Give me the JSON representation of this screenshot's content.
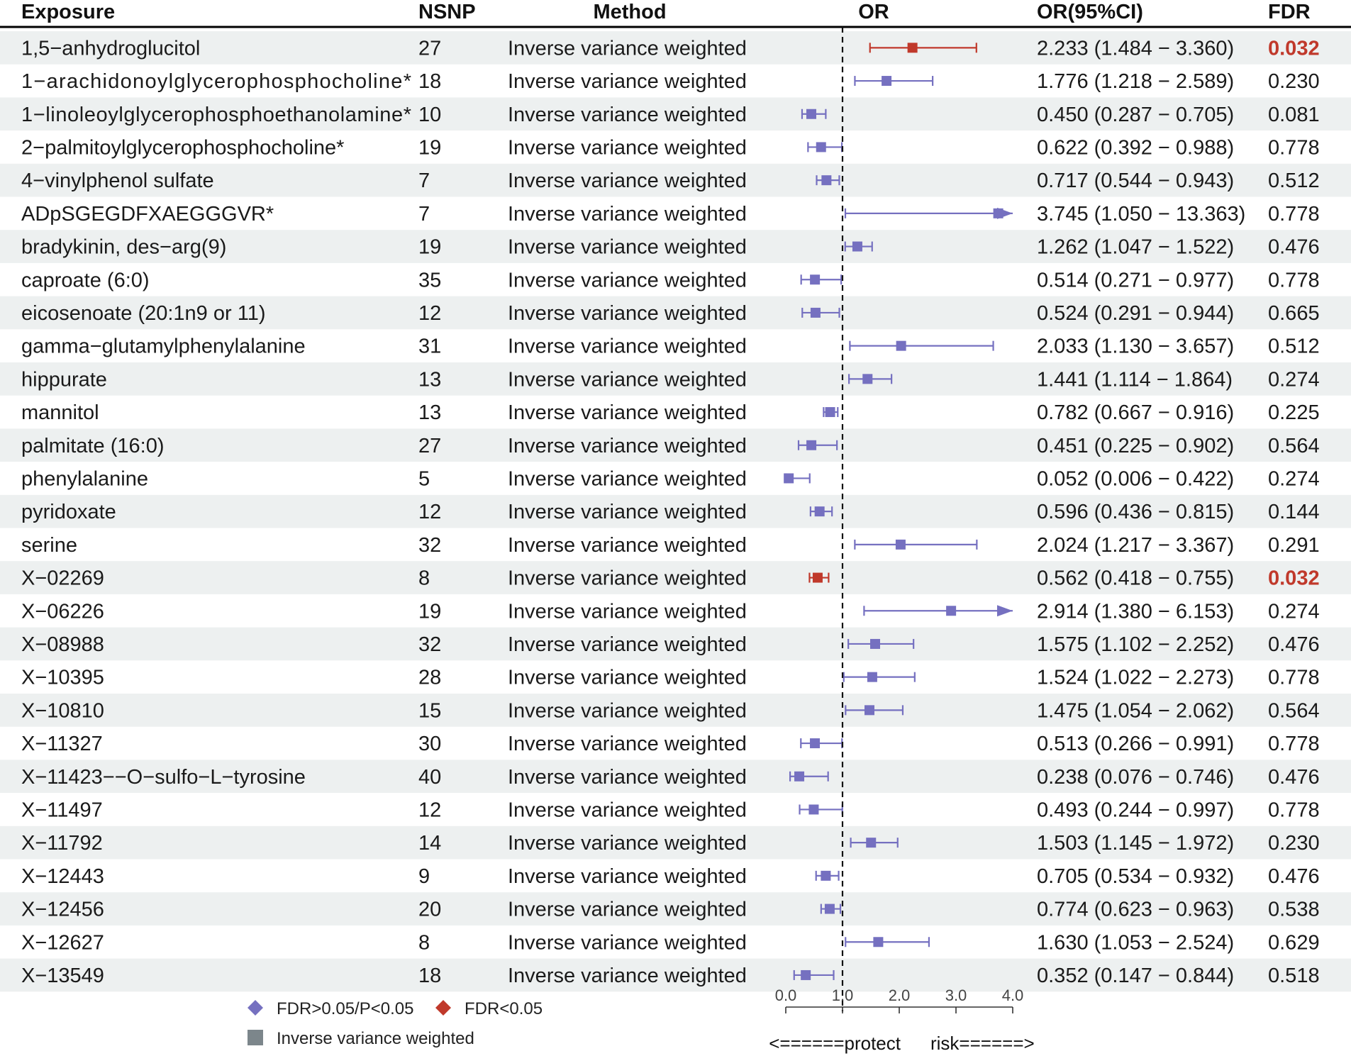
{
  "chart_data": {
    "type": "forest",
    "headers": {
      "exposure": "Exposure",
      "nsnp": "NSNP",
      "method": "Method",
      "or": "OR",
      "ci": "OR(95%CI)",
      "fdr": "FDR"
    },
    "x_axis": {
      "ticks": [
        0.0,
        1.0,
        2.0,
        3.0,
        4.0
      ],
      "tick_labels": [
        "0.0",
        "1.0",
        "2.0",
        "3.0",
        "4.0"
      ],
      "xlim": [
        0.0,
        4.0
      ],
      "reference_line": 1.0,
      "protect_label": "<======protect",
      "risk_label": "risk======>"
    },
    "legend": {
      "items": [
        {
          "label": "FDR>0.05/P<0.05",
          "shape": "diamond",
          "color": "#7570c0"
        },
        {
          "label": "FDR<0.05",
          "shape": "diamond",
          "color": "#c0392b"
        },
        {
          "label": "Inverse variance weighted",
          "shape": "square",
          "color": "#7c868b"
        }
      ]
    },
    "colors": {
      "nonsig": "#7570c0",
      "sig": "#c0392b",
      "stripe": "#edf0f0",
      "header_rule": "#000000"
    },
    "rows": [
      {
        "exposure": "1,5−anhydroglucitol",
        "nsnp": "27",
        "method": "Inverse variance weighted",
        "or": 2.233,
        "lo": 1.484,
        "hi": 3.36,
        "ci": "2.233 (1.484 − 3.360)",
        "fdr": "0.032",
        "sig": true
      },
      {
        "exposure": "1−arachidonoylglycerophosphocholine*",
        "nsnp": "18",
        "method": "Inverse variance weighted",
        "or": 1.776,
        "lo": 1.218,
        "hi": 2.589,
        "ci": "1.776 (1.218 − 2.589)",
        "fdr": "0.230",
        "sig": false
      },
      {
        "exposure": "1−linoleoylglycerophosphoethanolamine*",
        "nsnp": "10",
        "method": "Inverse variance weighted",
        "or": 0.45,
        "lo": 0.287,
        "hi": 0.705,
        "ci": "0.450 (0.287 − 0.705)",
        "fdr": "0.081",
        "sig": false
      },
      {
        "exposure": "2−palmitoylglycerophosphocholine*",
        "nsnp": "19",
        "method": "Inverse variance weighted",
        "or": 0.622,
        "lo": 0.392,
        "hi": 0.988,
        "ci": "0.622 (0.392 − 0.988)",
        "fdr": "0.778",
        "sig": false
      },
      {
        "exposure": "4−vinylphenol sulfate",
        "nsnp": "7",
        "method": "Inverse variance weighted",
        "or": 0.717,
        "lo": 0.544,
        "hi": 0.943,
        "ci": "0.717 (0.544 − 0.943)",
        "fdr": "0.512",
        "sig": false
      },
      {
        "exposure": "ADpSGEGDFXAEGGGVR*",
        "nsnp": "7",
        "method": "Inverse variance weighted",
        "or": 3.745,
        "lo": 1.05,
        "hi": 13.363,
        "ci": "3.745 (1.050 − 13.363)",
        "fdr": "0.778",
        "sig": false
      },
      {
        "exposure": "bradykinin, des−arg(9)",
        "nsnp": "19",
        "method": "Inverse variance weighted",
        "or": 1.262,
        "lo": 1.047,
        "hi": 1.522,
        "ci": "1.262 (1.047 − 1.522)",
        "fdr": "0.476",
        "sig": false
      },
      {
        "exposure": "caproate (6:0)",
        "nsnp": "35",
        "method": "Inverse variance weighted",
        "or": 0.514,
        "lo": 0.271,
        "hi": 0.977,
        "ci": "0.514 (0.271 − 0.977)",
        "fdr": "0.778",
        "sig": false
      },
      {
        "exposure": "eicosenoate (20:1n9 or 11)",
        "nsnp": "12",
        "method": "Inverse variance weighted",
        "or": 0.524,
        "lo": 0.291,
        "hi": 0.944,
        "ci": "0.524 (0.291 − 0.944)",
        "fdr": "0.665",
        "sig": false
      },
      {
        "exposure": "gamma−glutamylphenylalanine",
        "nsnp": "31",
        "method": "Inverse variance weighted",
        "or": 2.033,
        "lo": 1.13,
        "hi": 3.657,
        "ci": "2.033 (1.130 − 3.657)",
        "fdr": "0.512",
        "sig": false
      },
      {
        "exposure": "hippurate",
        "nsnp": "13",
        "method": "Inverse variance weighted",
        "or": 1.441,
        "lo": 1.114,
        "hi": 1.864,
        "ci": "1.441 (1.114 − 1.864)",
        "fdr": "0.274",
        "sig": false
      },
      {
        "exposure": "mannitol",
        "nsnp": "13",
        "method": "Inverse variance weighted",
        "or": 0.782,
        "lo": 0.667,
        "hi": 0.916,
        "ci": "0.782 (0.667 − 0.916)",
        "fdr": "0.225",
        "sig": false
      },
      {
        "exposure": "palmitate (16:0)",
        "nsnp": "27",
        "method": "Inverse variance weighted",
        "or": 0.451,
        "lo": 0.225,
        "hi": 0.902,
        "ci": "0.451 (0.225 − 0.902)",
        "fdr": "0.564",
        "sig": false
      },
      {
        "exposure": "phenylalanine",
        "nsnp": "5",
        "method": "Inverse variance weighted",
        "or": 0.052,
        "lo": 0.006,
        "hi": 0.422,
        "ci": "0.052 (0.006 − 0.422)",
        "fdr": "0.274",
        "sig": false
      },
      {
        "exposure": "pyridoxate",
        "nsnp": "12",
        "method": "Inverse variance weighted",
        "or": 0.596,
        "lo": 0.436,
        "hi": 0.815,
        "ci": "0.596 (0.436 − 0.815)",
        "fdr": "0.144",
        "sig": false
      },
      {
        "exposure": "serine",
        "nsnp": "32",
        "method": "Inverse variance weighted",
        "or": 2.024,
        "lo": 1.217,
        "hi": 3.367,
        "ci": "2.024 (1.217 − 3.367)",
        "fdr": "0.291",
        "sig": false
      },
      {
        "exposure": "X−02269",
        "nsnp": "8",
        "method": "Inverse variance weighted",
        "or": 0.562,
        "lo": 0.418,
        "hi": 0.755,
        "ci": "0.562 (0.418 − 0.755)",
        "fdr": "0.032",
        "sig": true
      },
      {
        "exposure": "X−06226",
        "nsnp": "19",
        "method": "Inverse variance weighted",
        "or": 2.914,
        "lo": 1.38,
        "hi": 6.153,
        "ci": "2.914 (1.380 − 6.153)",
        "fdr": "0.274",
        "sig": false
      },
      {
        "exposure": "X−08988",
        "nsnp": "32",
        "method": "Inverse variance weighted",
        "or": 1.575,
        "lo": 1.102,
        "hi": 2.252,
        "ci": "1.575 (1.102 − 2.252)",
        "fdr": "0.476",
        "sig": false
      },
      {
        "exposure": "X−10395",
        "nsnp": "28",
        "method": "Inverse variance weighted",
        "or": 1.524,
        "lo": 1.022,
        "hi": 2.273,
        "ci": "1.524 (1.022 − 2.273)",
        "fdr": "0.778",
        "sig": false
      },
      {
        "exposure": "X−10810",
        "nsnp": "15",
        "method": "Inverse variance weighted",
        "or": 1.475,
        "lo": 1.054,
        "hi": 2.062,
        "ci": "1.475 (1.054 − 2.062)",
        "fdr": "0.564",
        "sig": false
      },
      {
        "exposure": "X−11327",
        "nsnp": "30",
        "method": "Inverse variance weighted",
        "or": 0.513,
        "lo": 0.266,
        "hi": 0.991,
        "ci": "0.513 (0.266 − 0.991)",
        "fdr": "0.778",
        "sig": false
      },
      {
        "exposure": "X−11423−−O−sulfo−L−tyrosine",
        "nsnp": "40",
        "method": "Inverse variance weighted",
        "or": 0.238,
        "lo": 0.076,
        "hi": 0.746,
        "ci": "0.238 (0.076 − 0.746)",
        "fdr": "0.476",
        "sig": false
      },
      {
        "exposure": "X−11497",
        "nsnp": "12",
        "method": "Inverse variance weighted",
        "or": 0.493,
        "lo": 0.244,
        "hi": 0.997,
        "ci": "0.493 (0.244 − 0.997)",
        "fdr": "0.778",
        "sig": false
      },
      {
        "exposure": "X−11792",
        "nsnp": "14",
        "method": "Inverse variance weighted",
        "or": 1.503,
        "lo": 1.145,
        "hi": 1.972,
        "ci": "1.503 (1.145 − 1.972)",
        "fdr": "0.230",
        "sig": false
      },
      {
        "exposure": "X−12443",
        "nsnp": "9",
        "method": "Inverse variance weighted",
        "or": 0.705,
        "lo": 0.534,
        "hi": 0.932,
        "ci": "0.705 (0.534 − 0.932)",
        "fdr": "0.476",
        "sig": false
      },
      {
        "exposure": "X−12456",
        "nsnp": "20",
        "method": "Inverse variance weighted",
        "or": 0.774,
        "lo": 0.623,
        "hi": 0.963,
        "ci": "0.774 (0.623 − 0.963)",
        "fdr": "0.538",
        "sig": false
      },
      {
        "exposure": "X−12627",
        "nsnp": "8",
        "method": "Inverse variance weighted",
        "or": 1.63,
        "lo": 1.053,
        "hi": 2.524,
        "ci": "1.630 (1.053 − 2.524)",
        "fdr": "0.629",
        "sig": false
      },
      {
        "exposure": "X−13549",
        "nsnp": "18",
        "method": "Inverse variance weighted",
        "or": 0.352,
        "lo": 0.147,
        "hi": 0.844,
        "ci": "0.352 (0.147 − 0.844)",
        "fdr": "0.518",
        "sig": false
      }
    ]
  }
}
